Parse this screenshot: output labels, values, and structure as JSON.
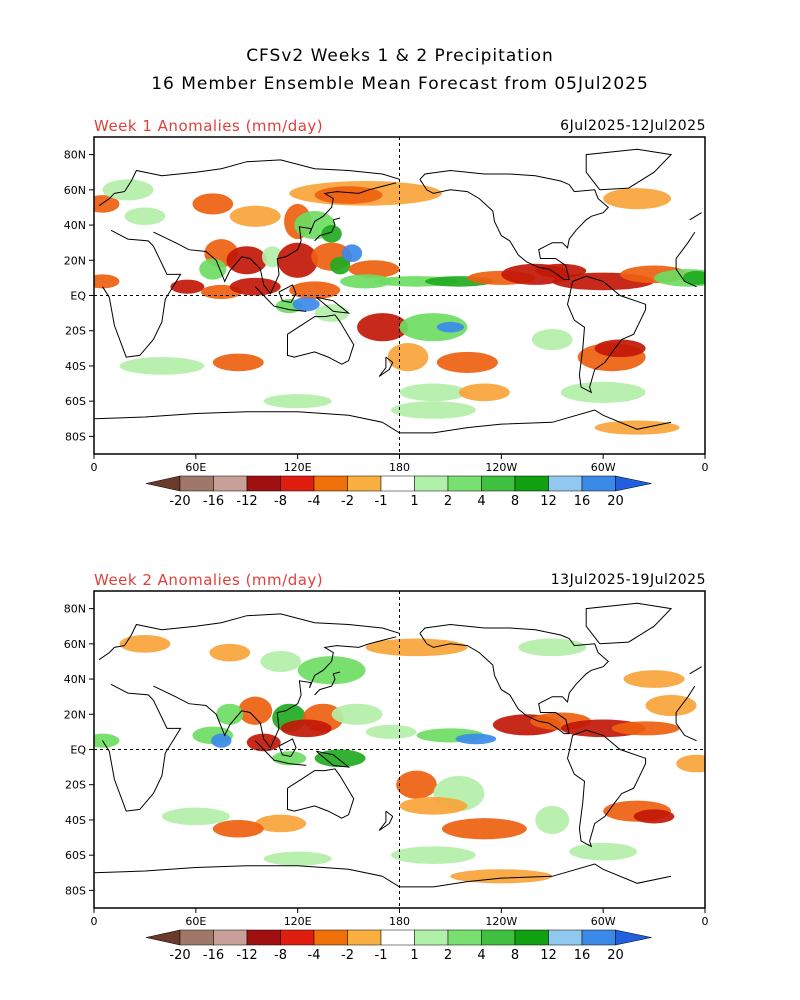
{
  "header": {
    "title_line1": "CFSv2 Weeks 1 & 2 Precipitation",
    "title_line2": "16 Member Ensemble Mean Forecast from 05Jul2025"
  },
  "panels": [
    {
      "label": "Week 1 Anomalies (mm/day)",
      "date_range": "6Jul2025-12Jul2025"
    },
    {
      "label": "Week 2 Anomalies (mm/day)",
      "date_range": "13Jul2025-19Jul2025"
    }
  ],
  "axes": {
    "lat_labels": [
      "80N",
      "60N",
      "40N",
      "20N",
      "EQ",
      "20S",
      "40S",
      "60S",
      "80S"
    ],
    "lat_values": [
      80,
      60,
      40,
      20,
      0,
      -20,
      -40,
      -60,
      -80
    ],
    "lon_labels": [
      "0",
      "60E",
      "120E",
      "180",
      "120W",
      "60W",
      "0"
    ],
    "lon_values": [
      0,
      60,
      120,
      180,
      240,
      300,
      360
    ]
  },
  "colorbar": {
    "labels": [
      "-20",
      "-16",
      "-12",
      "-8",
      "-4",
      "-2",
      "-1",
      "1",
      "2",
      "4",
      "8",
      "12",
      "16",
      "20"
    ],
    "colors": [
      "#6a3a2a",
      "#a0786a",
      "#c8a098",
      "#a01010",
      "#e01e10",
      "#f0700a",
      "#fab040",
      "#ffffff",
      "#b0f0a8",
      "#78e070",
      "#40c040",
      "#10a010",
      "#90c8f0",
      "#3c8ae8",
      "#2060e0"
    ]
  },
  "colors": {
    "dry_strong": "#c21808",
    "dry_mid": "#ee6010",
    "dry_light": "#f8a43a",
    "wet_light": "#b4efa8",
    "wet_mid": "#6edc62",
    "wet_strong": "#22aa22",
    "wet_blue": "#3c8ae8",
    "pink": "#d4a0a0",
    "coast": "#000000"
  },
  "map": {
    "lat_range": [
      -90,
      90
    ],
    "lon_range": [
      0,
      360
    ],
    "reference_lines": [
      "equator",
      "180"
    ]
  }
}
